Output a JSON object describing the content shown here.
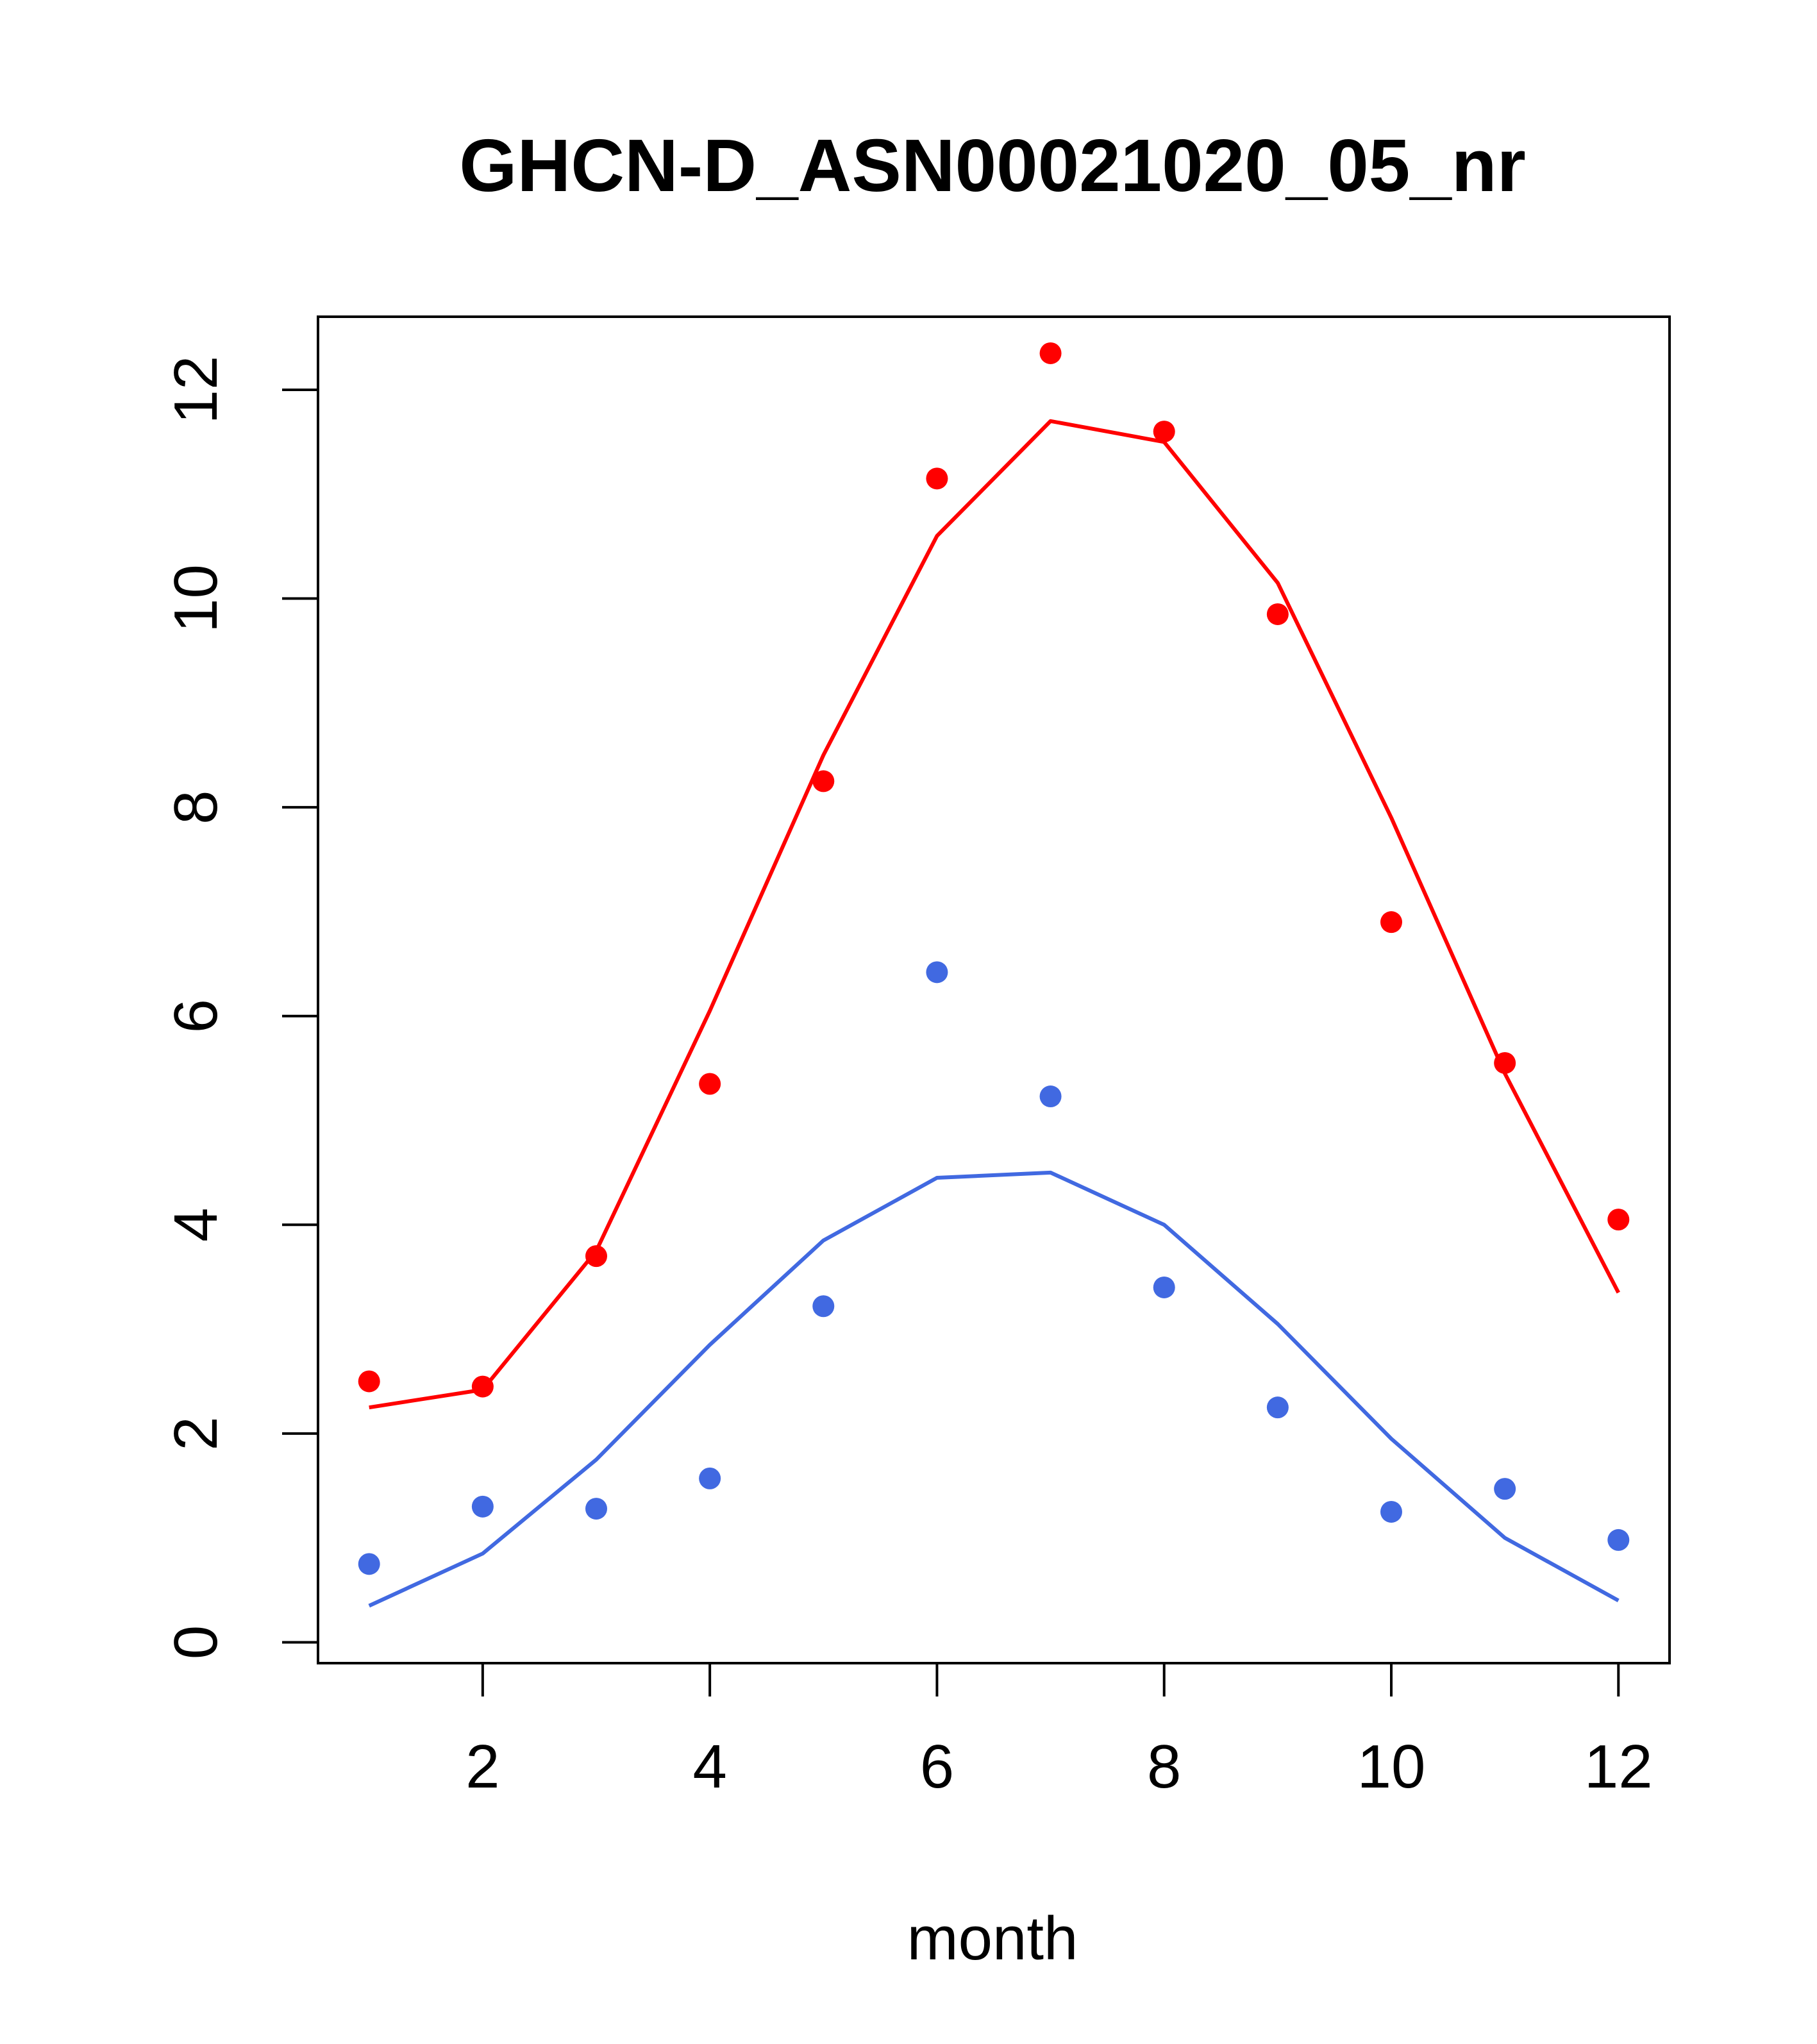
{
  "chart_data": {
    "type": "line",
    "title": "GHCN-D_ASN00021020_05_nr",
    "xlabel": "month",
    "ylabel": "",
    "xlim": [
      0.55,
      12.45
    ],
    "ylim": [
      -0.2,
      12.7
    ],
    "x_ticks": [
      2,
      4,
      6,
      8,
      10,
      12
    ],
    "y_ticks": [
      0,
      2,
      4,
      6,
      8,
      10,
      12
    ],
    "x": [
      1,
      2,
      3,
      4,
      5,
      6,
      7,
      8,
      9,
      10,
      11,
      12
    ],
    "series": [
      {
        "color": "#ff0000",
        "line": [
          2.25,
          2.42,
          3.75,
          6.05,
          8.5,
          10.6,
          11.7,
          11.5,
          10.15,
          7.9,
          5.45,
          3.35
        ],
        "points": [
          2.5,
          2.45,
          3.7,
          5.35,
          8.25,
          11.15,
          12.35,
          11.6,
          9.85,
          6.9,
          5.55,
          4.05
        ]
      },
      {
        "color": "#4169e1",
        "line": [
          0.35,
          0.85,
          1.75,
          2.85,
          3.85,
          4.45,
          4.5,
          4.0,
          3.05,
          1.95,
          1.0,
          0.4
        ],
        "points": [
          0.75,
          1.3,
          1.28,
          1.57,
          3.22,
          6.42,
          5.23,
          3.4,
          2.25,
          1.25,
          1.47,
          0.98
        ]
      }
    ],
    "grid": false,
    "legend": "none"
  }
}
